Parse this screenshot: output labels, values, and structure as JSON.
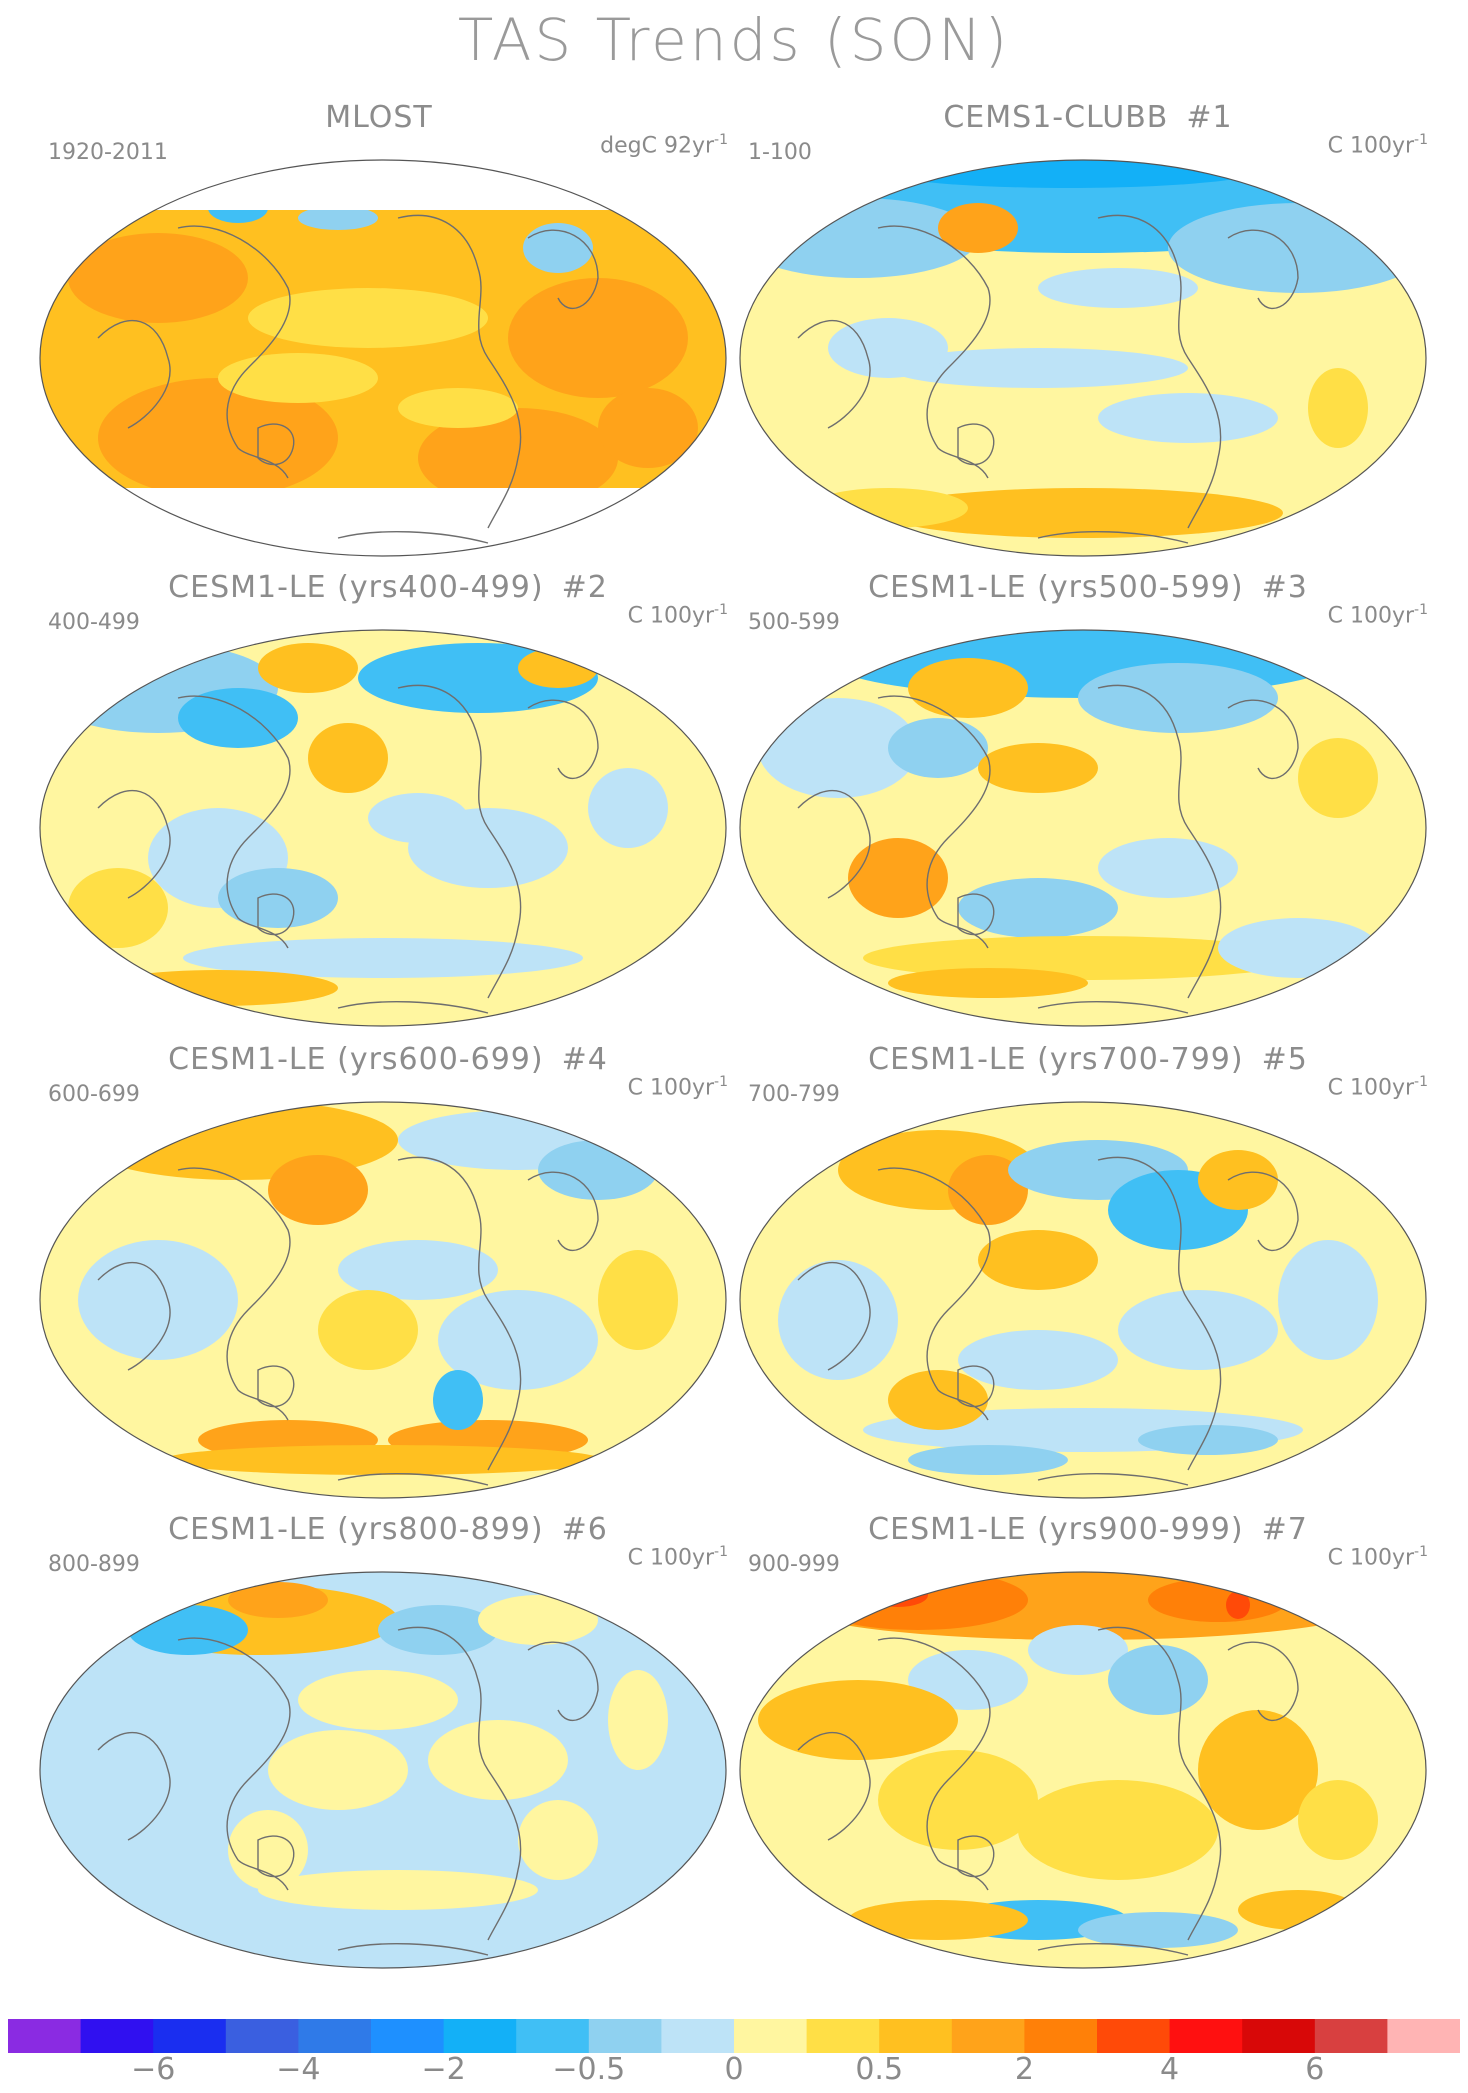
{
  "title": "TAS Trends (SON)",
  "panels": [
    {
      "id": "mlost",
      "title_main": "MLOST",
      "title_num": "",
      "period": "1920-2011",
      "units_main": "degC 92yr",
      "units_sup": "-1",
      "style": "obs"
    },
    {
      "id": "clubb",
      "title_main": "CEMS1-CLUBB",
      "title_num": "#1",
      "period": "1-100",
      "units_main": "C 100yr",
      "units_sup": "-1",
      "style": "coolN"
    },
    {
      "id": "le2",
      "title_main": "CESM1-LE (yrs400-499)",
      "title_num": "#2",
      "period": "400-499",
      "units_main": "C 100yr",
      "units_sup": "-1",
      "style": "mixedA"
    },
    {
      "id": "le3",
      "title_main": "CESM1-LE (yrs500-599)",
      "title_num": "#3",
      "period": "500-599",
      "units_main": "C 100yr",
      "units_sup": "-1",
      "style": "mixedB"
    },
    {
      "id": "le4",
      "title_main": "CESM1-LE (yrs600-699)",
      "title_num": "#4",
      "period": "600-699",
      "units_main": "C 100yr",
      "units_sup": "-1",
      "style": "warmN"
    },
    {
      "id": "le5",
      "title_main": "CESM1-LE (yrs700-799)",
      "title_num": "#5",
      "period": "700-799",
      "units_main": "C 100yr",
      "units_sup": "-1",
      "style": "mixedC"
    },
    {
      "id": "le6",
      "title_main": "CESM1-LE (yrs800-899)",
      "title_num": "#6",
      "period": "800-899",
      "units_main": "C 100yr",
      "units_sup": "-1",
      "style": "coolWide"
    },
    {
      "id": "le7",
      "title_main": "CESM1-LE (yrs900-999)",
      "title_num": "#7",
      "period": "900-999",
      "units_main": "C 100yr",
      "units_sup": "-1",
      "style": "hotN"
    }
  ],
  "colorbar": {
    "colors": [
      "#8a2be2",
      "#3010f0",
      "#1a2ef0",
      "#3a5fe0",
      "#2f7ae8",
      "#1e90ff",
      "#13b0f7",
      "#40bff5",
      "#8fd1f0",
      "#bde3f7",
      "#fff6a0",
      "#ffdf46",
      "#ffc020",
      "#ffa31a",
      "#ff8008",
      "#ff4a08",
      "#ff1010",
      "#d80808",
      "#d84040",
      "#ffb4b4"
    ],
    "labels": [
      {
        "text": "−6",
        "index": 2
      },
      {
        "text": "−4",
        "index": 4
      },
      {
        "text": "−2",
        "index": 6
      },
      {
        "text": "−0.5",
        "index": 8
      },
      {
        "text": "0",
        "index": 10
      },
      {
        "text": "0.5",
        "index": 12
      },
      {
        "text": "2",
        "index": 14
      },
      {
        "text": "4",
        "index": 16
      },
      {
        "text": "6",
        "index": 18
      }
    ]
  },
  "palette": {
    "blue_light": "#bde3f7",
    "blue_mid": "#8fd1f0",
    "blue": "#40bff5",
    "blue_dark": "#13b0f7",
    "yellow_light": "#fff6a0",
    "yellow": "#ffdf46",
    "orange_light": "#ffc020",
    "orange": "#ffa31a",
    "orange_dark": "#ff8008",
    "red": "#ff4a08",
    "coast": "#6e6e6e"
  }
}
